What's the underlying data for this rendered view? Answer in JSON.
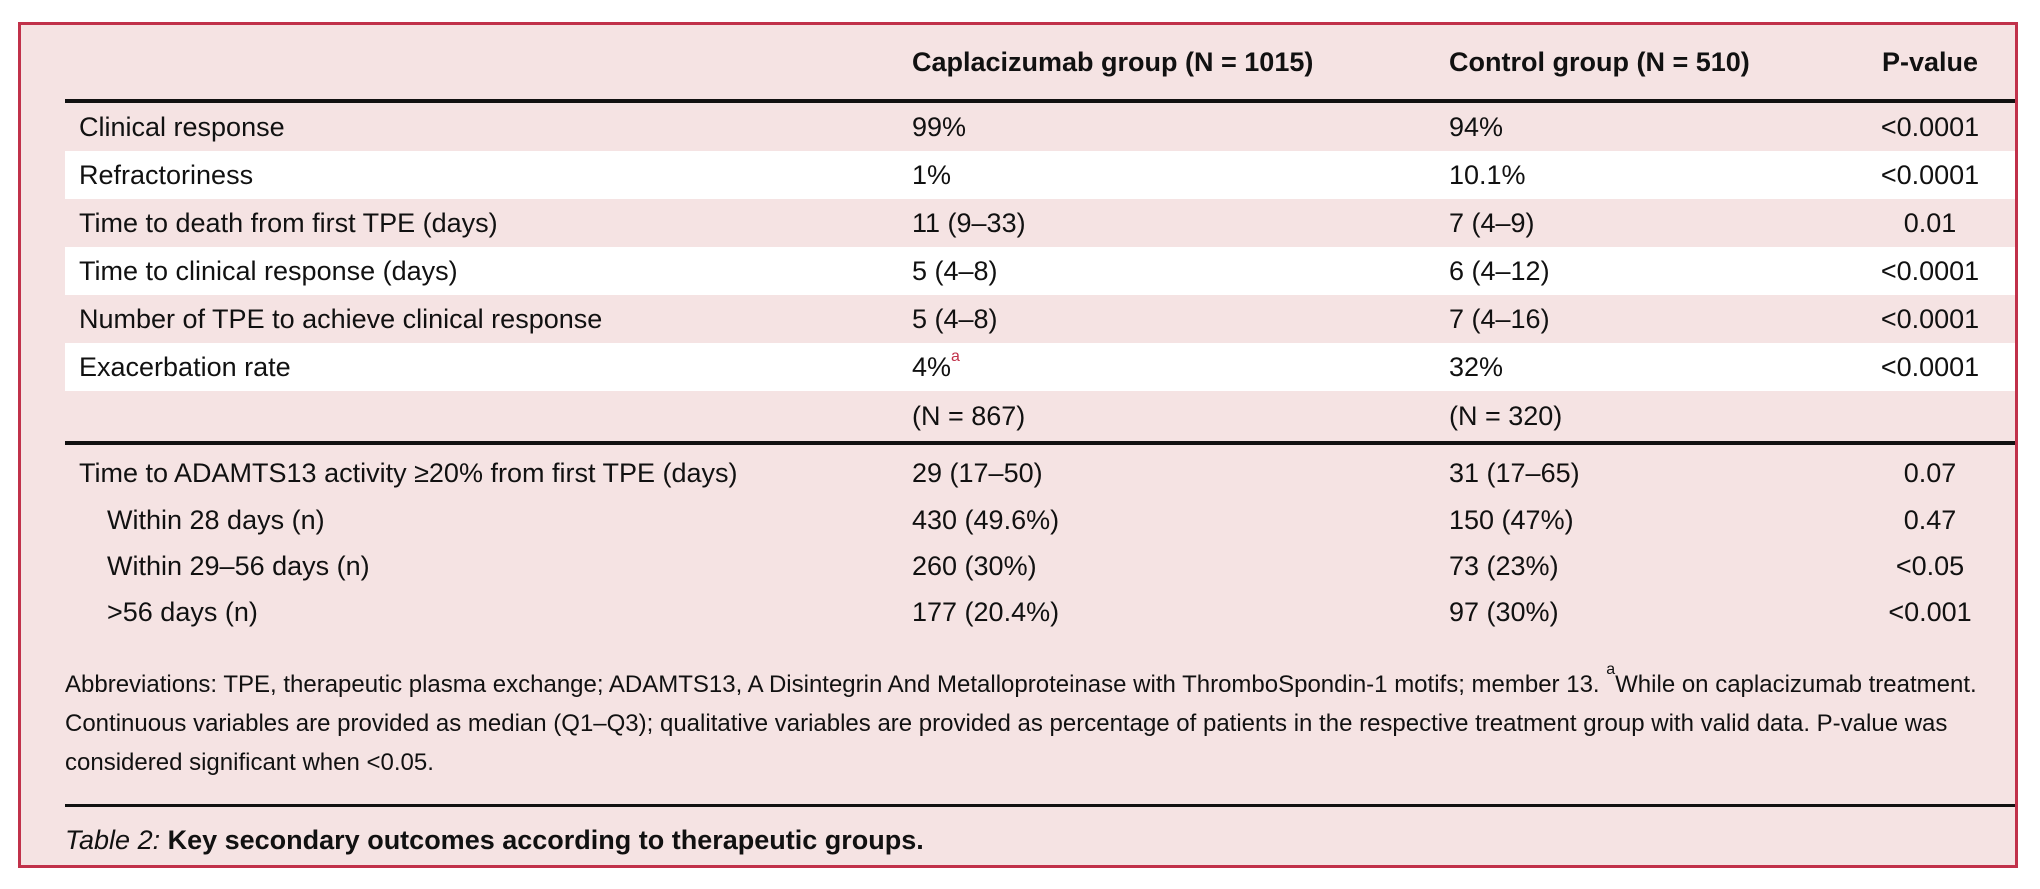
{
  "header": {
    "col_outcome": "",
    "col_capla": "Caplacizumab group (N = 1015)",
    "col_control": "Control group (N = 510)",
    "col_p": "P-value"
  },
  "block1": {
    "rows": [
      {
        "label": "Clinical response",
        "capla": "99%",
        "capla_sup": "",
        "control": "94%",
        "p": "<0.0001"
      },
      {
        "label": "Refractoriness",
        "capla": "1%",
        "capla_sup": "",
        "control": "10.1%",
        "p": "<0.0001"
      },
      {
        "label": "Time to death from first TPE (days)",
        "capla": "11 (9–33)",
        "capla_sup": "",
        "control": "7 (4–9)",
        "p": "0.01"
      },
      {
        "label": "Time to clinical response (days)",
        "capla": "5 (4–8)",
        "capla_sup": "",
        "control": "6 (4–12)",
        "p": "<0.0001"
      },
      {
        "label": "Number of TPE to achieve clinical response",
        "capla": "5 (4–8)",
        "capla_sup": "",
        "control": "7 (4–16)",
        "p": "<0.0001"
      },
      {
        "label": "Exacerbation rate",
        "capla": "4%",
        "capla_sup": "a",
        "control": "32%",
        "p": "<0.0001"
      }
    ],
    "n_row": {
      "capla": "(N = 867)",
      "control": "(N = 320)"
    }
  },
  "block2": {
    "rows": [
      {
        "label": "Time to ADAMTS13 activity ≥20% from first TPE (days)",
        "capla": "29 (17–50)",
        "control": "31 (17–65)",
        "p": "0.07"
      },
      {
        "label": "Within 28 days (n)",
        "capla": "430 (49.6%)",
        "control": "150 (47%)",
        "p": "0.47"
      },
      {
        "label": "Within 29–56 days (n)",
        "capla": "260 (30%)",
        "control": "73 (23%)",
        "p": "<0.05"
      },
      {
        "label": ">56 days (n)",
        "capla": "177 (20.4%)",
        "control": "97 (30%)",
        "p": "<0.001"
      }
    ]
  },
  "footnote": {
    "part1": "Abbreviations: TPE, therapeutic plasma exchange; ADAMTS13, A Disintegrin And Metalloproteinase with ThromboSpondin-1 motifs; member 13. ",
    "sup": "a",
    "part2": "While on caplacizumab treatment. Continuous variables are provided as median (Q1–Q3); qualitative variables are provided as percentage of patients in the respective treatment group with valid data. P-value was considered significant when <0.05."
  },
  "caption": {
    "label": "Table 2:",
    "text": " Key secondary outcomes according to therapeutic groups."
  },
  "colors": {
    "frame_border": "#c1314a",
    "background": "#f5e3e3",
    "band": "#ffffff",
    "rule": "#111111"
  }
}
